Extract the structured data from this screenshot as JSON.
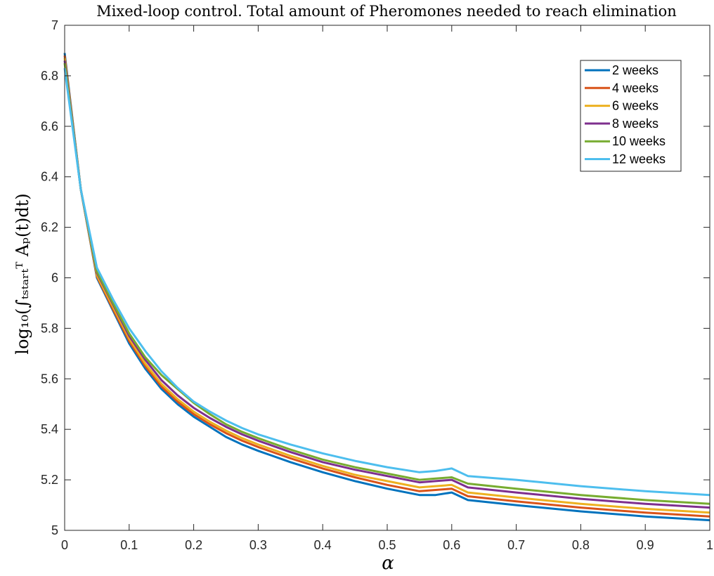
{
  "chart_data": {
    "type": "line",
    "title": "Mixed-loop control. Total amount of Pheromones needed to reach elimination",
    "xlabel": "α",
    "ylabel": "log₁₀(∫ₜₛₜₐᵣₜᵀ Aₚ(t)dt)",
    "xlim": [
      0,
      1
    ],
    "ylim": [
      5,
      7
    ],
    "xticks": [
      0,
      0.1,
      0.2,
      0.3,
      0.4,
      0.5,
      0.6,
      0.7,
      0.8,
      0.9,
      1
    ],
    "xtick_labels": [
      "0",
      "0.1",
      "0.2",
      "0.3",
      "0.4",
      "0.5",
      "0.6",
      "0.7",
      "0.8",
      "0.9",
      "1"
    ],
    "yticks": [
      5,
      5.2,
      5.4,
      5.6,
      5.8,
      6,
      6.2,
      6.4,
      6.6,
      6.8,
      7
    ],
    "ytick_labels": [
      "5",
      "5.2",
      "5.4",
      "5.6",
      "5.8",
      "6",
      "6.2",
      "6.4",
      "6.6",
      "6.8",
      "7"
    ],
    "grid": false,
    "legend_position": "top-right",
    "x": [
      0,
      0.025,
      0.05,
      0.075,
      0.1,
      0.125,
      0.15,
      0.175,
      0.2,
      0.225,
      0.25,
      0.275,
      0.3,
      0.35,
      0.4,
      0.45,
      0.5,
      0.55,
      0.575,
      0.6,
      0.625,
      0.7,
      0.8,
      0.9,
      1.0
    ],
    "series": [
      {
        "name": "2 weeks",
        "color": "#0072BD",
        "values": [
          6.89,
          6.35,
          6.0,
          5.87,
          5.74,
          5.64,
          5.56,
          5.5,
          5.45,
          5.41,
          5.37,
          5.34,
          5.315,
          5.27,
          5.23,
          5.195,
          5.165,
          5.14,
          5.14,
          5.15,
          5.12,
          5.1,
          5.075,
          5.055,
          5.04
        ]
      },
      {
        "name": "4 weeks",
        "color": "#D95319",
        "values": [
          6.88,
          6.35,
          6.005,
          5.875,
          5.75,
          5.65,
          5.57,
          5.51,
          5.46,
          5.42,
          5.385,
          5.355,
          5.33,
          5.285,
          5.245,
          5.21,
          5.18,
          5.155,
          5.16,
          5.165,
          5.135,
          5.115,
          5.09,
          5.07,
          5.055
        ]
      },
      {
        "name": "6 weeks",
        "color": "#EDB120",
        "values": [
          6.87,
          6.35,
          6.01,
          5.885,
          5.76,
          5.66,
          5.58,
          5.52,
          5.47,
          5.43,
          5.395,
          5.365,
          5.34,
          5.295,
          5.255,
          5.22,
          5.195,
          5.17,
          5.175,
          5.18,
          5.15,
          5.13,
          5.105,
          5.085,
          5.07
        ]
      },
      {
        "name": "8 weeks",
        "color": "#7E2F8E",
        "values": [
          6.86,
          6.35,
          6.02,
          5.895,
          5.77,
          5.675,
          5.595,
          5.535,
          5.485,
          5.445,
          5.41,
          5.38,
          5.355,
          5.31,
          5.27,
          5.24,
          5.215,
          5.19,
          5.195,
          5.2,
          5.17,
          5.15,
          5.125,
          5.105,
          5.09
        ]
      },
      {
        "name": "10 weeks",
        "color": "#77AC30",
        "values": [
          6.85,
          6.35,
          6.025,
          5.9,
          5.78,
          5.685,
          5.615,
          5.56,
          5.505,
          5.46,
          5.42,
          5.39,
          5.365,
          5.32,
          5.28,
          5.25,
          5.225,
          5.2,
          5.205,
          5.21,
          5.185,
          5.165,
          5.14,
          5.12,
          5.105
        ]
      },
      {
        "name": "12 weeks",
        "color": "#4DBEEE",
        "values": [
          6.83,
          6.35,
          6.04,
          5.915,
          5.8,
          5.71,
          5.63,
          5.565,
          5.51,
          5.47,
          5.435,
          5.405,
          5.38,
          5.34,
          5.305,
          5.275,
          5.25,
          5.23,
          5.235,
          5.245,
          5.215,
          5.2,
          5.175,
          5.155,
          5.14
        ]
      }
    ]
  }
}
